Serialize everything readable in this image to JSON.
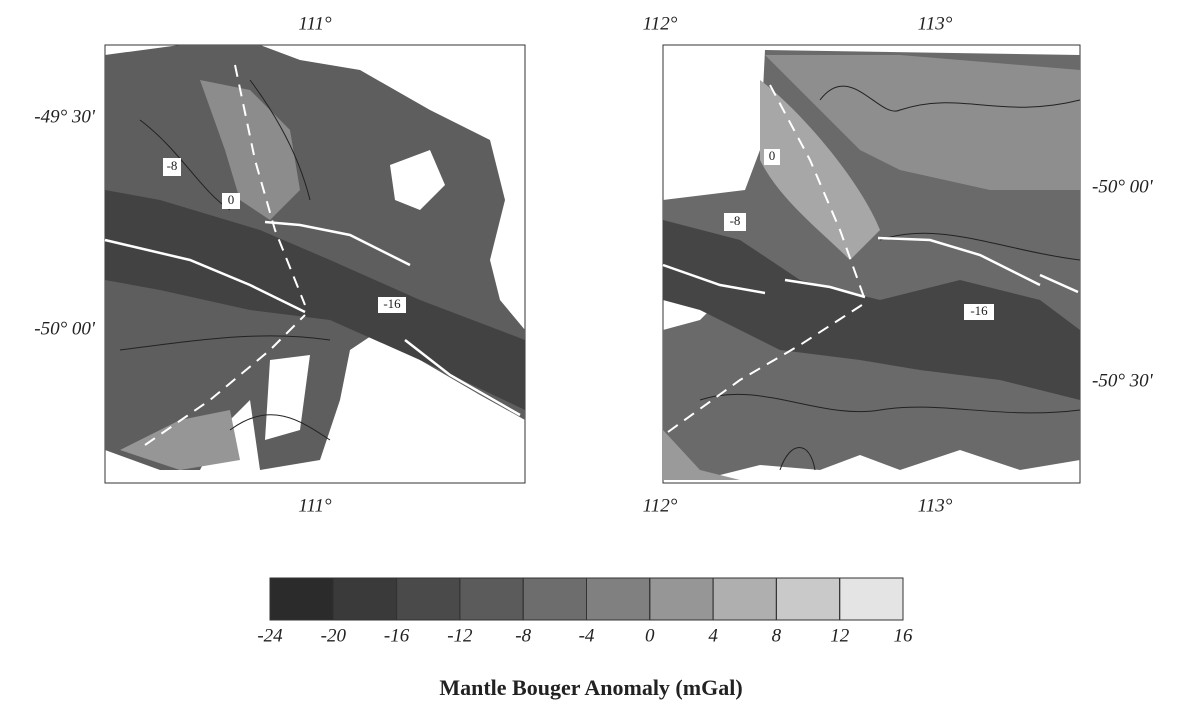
{
  "maps": [
    {
      "top_labels": [
        "111°"
      ],
      "bottom_labels": [
        "111°"
      ],
      "side_labels": [
        "-49° 30'",
        "-50° 00'"
      ],
      "contour_labels": [
        "-8",
        "0",
        "-16"
      ]
    },
    {
      "top_labels": [
        "112°",
        "113°"
      ],
      "bottom_labels": [
        "112°",
        "113°"
      ],
      "side_labels": [
        "-50° 00'",
        "-50° 30'"
      ],
      "contour_labels": [
        "0",
        "-8",
        "-16"
      ]
    }
  ],
  "colorbar": {
    "ticks": [
      -24,
      -20,
      -16,
      -12,
      -8,
      -4,
      0,
      4,
      8,
      12,
      16
    ],
    "colors": [
      "#2b2b2b",
      "#3a3a3a",
      "#4a4a4a",
      "#5b5b5b",
      "#6d6d6d",
      "#808080",
      "#969696",
      "#afafaf",
      "#c9c9c9",
      "#e4e4e4"
    ]
  },
  "title": "Mantle Bouger Anomaly (mGal)"
}
